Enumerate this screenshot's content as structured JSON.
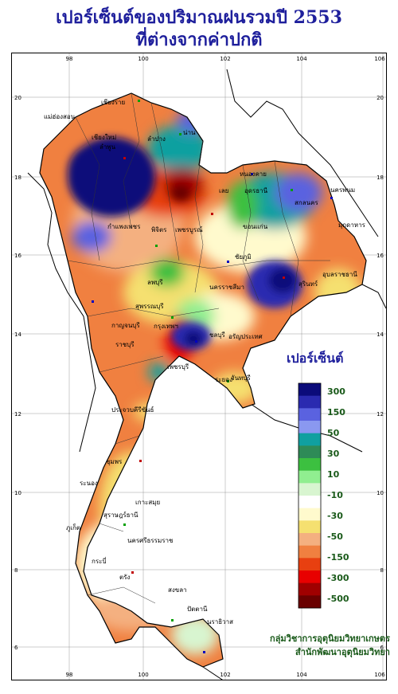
{
  "title": {
    "line1": "เปอร์เซ็นต์ของปริมาณฝนรวมปี 2553",
    "line2": "ที่ต่างจากค่าปกติ"
  },
  "axes": {
    "lon_ticks": [
      "98",
      "100",
      "102",
      "104",
      "106"
    ],
    "lat_ticks": [
      "20",
      "18",
      "16",
      "14",
      "12",
      "10",
      "8",
      "6"
    ]
  },
  "legend": {
    "title": "เปอร์เซ็นต์",
    "labels": [
      "300",
      "150",
      "50",
      "30",
      "10",
      "-10",
      "-30",
      "-50",
      "-150",
      "-300",
      "-500"
    ],
    "colors": [
      "#0b0b7a",
      "#2a2ab0",
      "#5a62e0",
      "#8a98f0",
      "#10a0a0",
      "#2e8b57",
      "#3cc040",
      "#90ee90",
      "#d8f5d0",
      "#ffffff",
      "#fffacd",
      "#f5e070",
      "#f4b080",
      "#f08040",
      "#e84010",
      "#e80000",
      "#a00000",
      "#6a0000"
    ]
  },
  "places": [
    {
      "name": "เชียงราย",
      "id": "chiangrai"
    },
    {
      "name": "เชียงใหม่",
      "id": "chiangmai"
    },
    {
      "name": "ลำพูน",
      "id": "lamphun"
    },
    {
      "name": "ลำปาง",
      "id": "lampang"
    },
    {
      "name": "น่าน",
      "id": "nan"
    },
    {
      "name": "แม่ฮ่องสอน",
      "id": "maehongson"
    },
    {
      "name": "หนองคาย",
      "id": "nongkhai"
    },
    {
      "name": "อุดรธานี",
      "id": "udon"
    },
    {
      "name": "นครพนม",
      "id": "nakhonphanom"
    },
    {
      "name": "สกลนคร",
      "id": "sakon"
    },
    {
      "name": "มุกดาหาร",
      "id": "mukdahan"
    },
    {
      "name": "เลย",
      "id": "loei"
    },
    {
      "name": "ขอนแก่น",
      "id": "khonkaen"
    },
    {
      "name": "กำแพงเพชร",
      "id": "kamphaeng"
    },
    {
      "name": "พิจิตร",
      "id": "phichit"
    },
    {
      "name": "เพชรบูรณ์",
      "id": "phetchabun"
    },
    {
      "name": "ชัยภูมิ",
      "id": "chaiyaphum"
    },
    {
      "name": "อุบลราชธานี",
      "id": "ubon"
    },
    {
      "name": "นครราชสีมา",
      "id": "korat"
    },
    {
      "name": "สุรินทร์",
      "id": "surin"
    },
    {
      "name": "ลพบุรี",
      "id": "lopburi"
    },
    {
      "name": "สุพรรณบุรี",
      "id": "suphan"
    },
    {
      "name": "กาญจนบุรี",
      "id": "kanchanaburi"
    },
    {
      "name": "ราชบุรี",
      "id": "ratchaburi"
    },
    {
      "name": "กรุงเทพฯ",
      "id": "bangkok"
    },
    {
      "name": "ชลบุรี",
      "id": "chonburi"
    },
    {
      "name": "ระยอง",
      "id": "rayong"
    },
    {
      "name": "จันทบุรี",
      "id": "chanthaburi"
    },
    {
      "name": "อรัญประเทศ",
      "id": "aranyaprathet"
    },
    {
      "name": "เพชรบุรี",
      "id": "phetchaburi"
    },
    {
      "name": "ประจวบคีรีขันธ์",
      "id": "prachuap"
    },
    {
      "name": "ชุมพร",
      "id": "chumphon"
    },
    {
      "name": "ระนอง",
      "id": "ranong"
    },
    {
      "name": "สุราษฎร์ธานี",
      "id": "surat"
    },
    {
      "name": "เกาะสมุย",
      "id": "samui"
    },
    {
      "name": "นครศรีธรรมราช",
      "id": "nakhonsi"
    },
    {
      "name": "ภูเก็ต",
      "id": "phuket"
    },
    {
      "name": "กระบี่",
      "id": "krabi"
    },
    {
      "name": "ตรัง",
      "id": "trang"
    },
    {
      "name": "สงขลา",
      "id": "songkhla"
    },
    {
      "name": "ปัตตานี",
      "id": "pattani"
    },
    {
      "name": "นราธิวาส",
      "id": "narathiwat"
    }
  ],
  "credit": {
    "line1": "กลุ่มวิชาการอุตุนิยมวิทยาเกษตร",
    "line2": "สำนักพัฒนาอุตุนิยมวิทยา"
  }
}
